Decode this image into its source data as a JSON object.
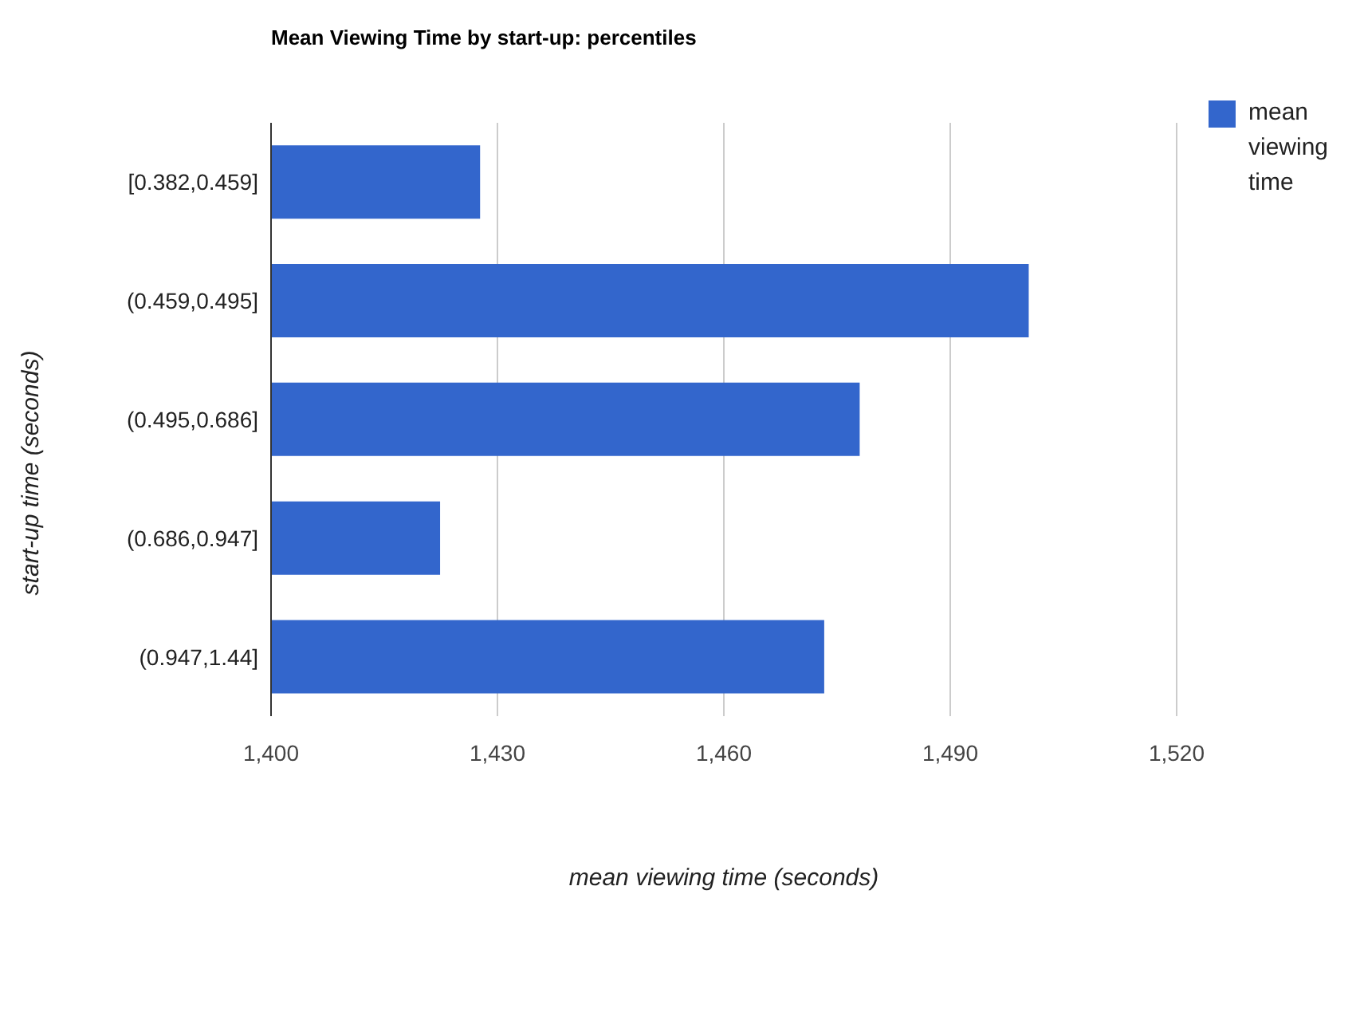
{
  "chart_data": {
    "type": "bar",
    "orientation": "horizontal",
    "title": "Mean Viewing Time by start-up: percentiles",
    "xlabel": "mean viewing time (seconds)",
    "ylabel": "start-up time (seconds)",
    "categories": [
      "[0.382,0.459]",
      "(0.459,0.495]",
      "(0.495,0.686]",
      "(0.686,0.947]",
      "(0.947,1.44]"
    ],
    "series": [
      {
        "name": "mean viewing time",
        "color": "#3366cc",
        "values": [
          1427.7,
          1500.4,
          1478,
          1422.4,
          1473.3
        ]
      }
    ],
    "xlim": [
      1400,
      1520
    ],
    "xticks": [
      {
        "value": 1400,
        "label": "1,400"
      },
      {
        "value": 1430,
        "label": "1,430"
      },
      {
        "value": 1460,
        "label": "1,460"
      },
      {
        "value": 1490,
        "label": "1,490"
      },
      {
        "value": 1520,
        "label": "1,520"
      }
    ],
    "grid": "x",
    "legend": "top right"
  }
}
